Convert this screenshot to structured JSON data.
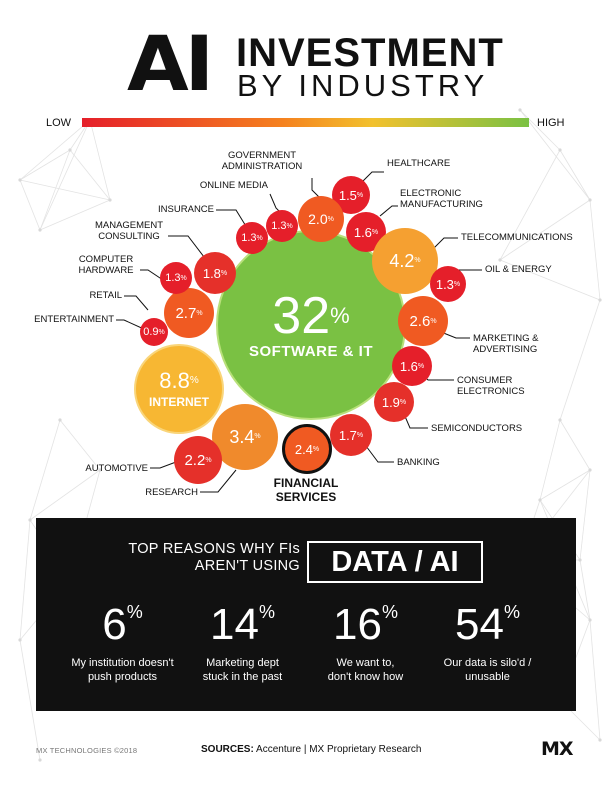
{
  "title": {
    "ai": "AI",
    "line1": "INVESTMENT",
    "line2": "BY INDUSTRY"
  },
  "scale": {
    "low": "LOW",
    "high": "HIGH"
  },
  "center": {
    "value": "32",
    "unit": "%",
    "name": "SOFTWARE & IT",
    "color": "#7ac143"
  },
  "industries": [
    {
      "id": "healthcare",
      "name": "HEALTHCARE",
      "value": "1.5",
      "color": "#e51f2a"
    },
    {
      "id": "electronic-manufacturing",
      "name": "ELECTRONIC MANUFACTURING",
      "value": "1.6",
      "color": "#e51f2a"
    },
    {
      "id": "telecommunications",
      "name": "TELECOMMUNICATIONS",
      "value": "4.2",
      "color": "#f5a031"
    },
    {
      "id": "oil-energy",
      "name": "OIL & ENERGY",
      "value": "1.3",
      "color": "#e51f2a"
    },
    {
      "id": "marketing-advertising",
      "name": "MARKETING & ADVERTISING",
      "value": "2.6",
      "color": "#f05a22"
    },
    {
      "id": "consumer-electronics",
      "name": "CONSUMER ELECTRONICS",
      "value": "1.6",
      "color": "#e51f2a"
    },
    {
      "id": "semiconductors",
      "name": "SEMICONDUCTORS",
      "value": "1.9",
      "color": "#e5302a"
    },
    {
      "id": "banking",
      "name": "BANKING",
      "value": "1.7",
      "color": "#e5302a"
    },
    {
      "id": "financial-services",
      "name": "FINANCIAL SERVICES",
      "value": "2.4",
      "color": "#f05a22"
    },
    {
      "id": "research",
      "name": "RESEARCH",
      "value": "3.4",
      "color": "#f08a2c"
    },
    {
      "id": "automotive",
      "name": "AUTOMOTIVE",
      "value": "2.2",
      "color": "#e5302a"
    },
    {
      "id": "internet",
      "name": "INTERNET",
      "value": "8.8",
      "color": "#f7b733"
    },
    {
      "id": "entertainment",
      "name": "ENTERTAINMENT",
      "value": "0.9",
      "color": "#e51f2a"
    },
    {
      "id": "retail",
      "name": "RETAIL",
      "value": "2.7",
      "color": "#f05a22"
    },
    {
      "id": "computer-hardware",
      "name": "COMPUTER HARDWARE",
      "value": "1.3",
      "color": "#e51f2a"
    },
    {
      "id": "management-consulting",
      "name": "MANAGEMENT CONSULTING",
      "value": "1.8",
      "color": "#e5302a"
    },
    {
      "id": "insurance",
      "name": "INSURANCE",
      "value": "1.3",
      "color": "#e51f2a"
    },
    {
      "id": "online-media",
      "name": "ONLINE MEDIA",
      "value": "1.3",
      "color": "#e51f2a"
    },
    {
      "id": "government-administration",
      "name": "GOVERNMENT ADMINISTRATION",
      "value": "2.0",
      "color": "#f05a22"
    }
  ],
  "unit": "%",
  "labels": {
    "healthcare": "HEALTHCARE",
    "electronic_manufacturing": [
      "ELECTRONIC",
      "MANUFACTURING"
    ],
    "telecommunications": "TELECOMMUNICATIONS",
    "oil_energy": "OIL & ENERGY",
    "marketing_advertising": [
      "MARKETING &",
      "ADVERTISING"
    ],
    "consumer_electronics": [
      "CONSUMER",
      "ELECTRONICS"
    ],
    "semiconductors": "SEMICONDUCTORS",
    "banking": "BANKING",
    "financial_services": [
      "FINANCIAL",
      "SERVICES"
    ],
    "research": "RESEARCH",
    "automotive": "AUTOMOTIVE",
    "internet": "INTERNET",
    "entertainment": "ENTERTAINMENT",
    "retail": "RETAIL",
    "computer_hardware": [
      "COMPUTER",
      "HARDWARE"
    ],
    "management_consulting": [
      "MANAGEMENT",
      "CONSULTING"
    ],
    "insurance": "INSURANCE",
    "online_media": "ONLINE MEDIA",
    "government_administration": [
      "GOVERNMENT",
      "ADMINISTRATION"
    ]
  },
  "reasons": {
    "heading_line1": "TOP REASONS WHY FIs",
    "heading_line2": "AREN'T USING",
    "highlight": "DATA / AI",
    "stats": [
      {
        "value": "6",
        "unit": "%",
        "caption_line1": "My institution doesn't",
        "caption_line2": "push products"
      },
      {
        "value": "14",
        "unit": "%",
        "caption_line1": "Marketing dept",
        "caption_line2": "stuck in the past"
      },
      {
        "value": "16",
        "unit": "%",
        "caption_line1": "We want to,",
        "caption_line2": "don't know how"
      },
      {
        "value": "54",
        "unit": "%",
        "caption_line1": "Our data is silo'd /",
        "caption_line2": "unusable"
      }
    ]
  },
  "footer": {
    "copyright": "MX TECHNOLOGIES ©2018",
    "sources_label": "SOURCES:",
    "sources_text": "Accenture  |  MX Proprietary Research",
    "logo": "MX"
  }
}
